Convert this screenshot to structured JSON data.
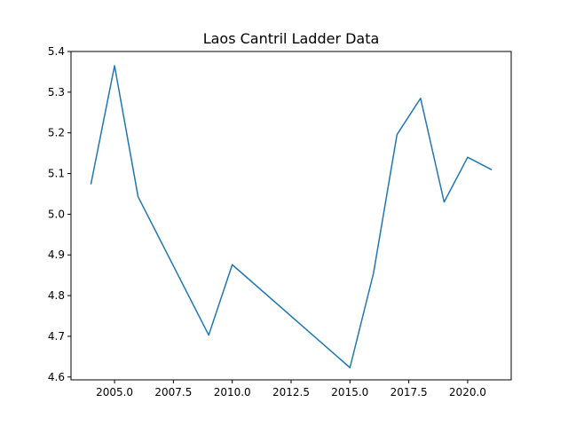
{
  "chart_data": {
    "type": "line",
    "title": "Laos Cantril Ladder Data",
    "xlabel": "",
    "ylabel": "",
    "xlim": [
      2003.15,
      2021.85
    ],
    "ylim": [
      4.593,
      5.4
    ],
    "grid": false,
    "x_ticks": [
      2005.0,
      2007.5,
      2010.0,
      2012.5,
      2015.0,
      2017.5,
      2020.0
    ],
    "x_tick_labels": [
      "2005.0",
      "2007.5",
      "2010.0",
      "2012.5",
      "2015.0",
      "2017.5",
      "2020.0"
    ],
    "y_ticks": [
      4.6,
      4.7,
      4.8,
      4.9,
      5.0,
      5.1,
      5.2,
      5.3,
      5.4
    ],
    "y_tick_labels": [
      "4.6",
      "4.7",
      "4.8",
      "4.9",
      "5.0",
      "5.1",
      "5.2",
      "5.3",
      "5.4"
    ],
    "series": [
      {
        "color": "#1f77b4",
        "x": [
          2004,
          2005,
          2006,
          2009,
          2010,
          2015,
          2016,
          2017,
          2018,
          2019,
          2020,
          2021
        ],
        "y": [
          5.075,
          5.365,
          5.043,
          4.703,
          4.876,
          4.623,
          4.855,
          5.196,
          5.285,
          5.03,
          5.14,
          5.11
        ]
      }
    ]
  }
}
